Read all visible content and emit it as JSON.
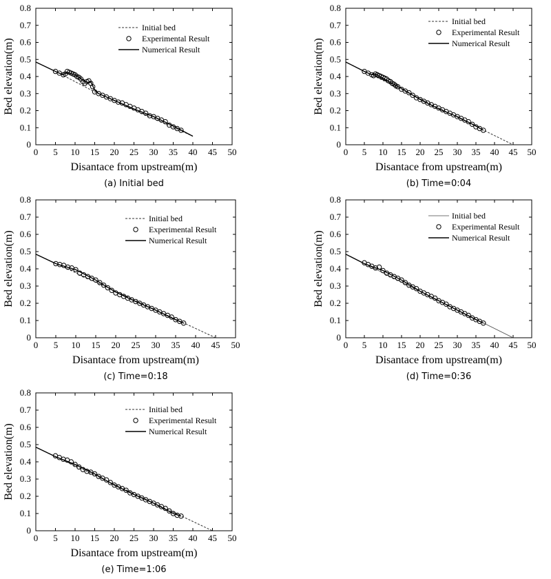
{
  "figure": {
    "panels": [
      {
        "caption": "(a) Initial bed"
      },
      {
        "caption": "(b) Time=0:04"
      },
      {
        "caption": "(c) Time=0:18"
      },
      {
        "caption": "(d) Time=0:36"
      },
      {
        "caption": "(e) Time=1:06"
      }
    ]
  },
  "chart_data": [
    {
      "type": "line",
      "caption": "(a) Initial bed",
      "xlabel": "Disantace from upstream(m)",
      "ylabel": "Bed elevation(m)",
      "xlim": [
        0,
        50
      ],
      "ylim": [
        0,
        0.8
      ],
      "xticks": [
        "0",
        "5",
        "10",
        "15",
        "20",
        "25",
        "30",
        "35",
        "40",
        "45",
        "50"
      ],
      "yticks": [
        "0",
        "0.1",
        "0.2",
        "0.3",
        "0.4",
        "0.5",
        "0.6",
        "0.7",
        "0.8"
      ],
      "legend": [
        "Initial bed",
        "Experimental Result",
        "Numerical Result"
      ],
      "series": [
        {
          "name": "Initial bed",
          "style": "dashed",
          "x": [
            0,
            5,
            15,
            40
          ],
          "y": [
            0.485,
            0.43,
            0.31,
            0.05
          ]
        },
        {
          "name": "Experimental Result",
          "style": "markers",
          "x": [
            5,
            6,
            7,
            7.5,
            8,
            8.5,
            9,
            9.5,
            10,
            10.5,
            11,
            11.5,
            12,
            12.5,
            13,
            13.5,
            14,
            14.5,
            15,
            16,
            17,
            18,
            19,
            20,
            21,
            22,
            23,
            24,
            25,
            26,
            27,
            28,
            29,
            30,
            31,
            32,
            33,
            34,
            35,
            36,
            37
          ],
          "y": [
            0.43,
            0.42,
            0.41,
            0.415,
            0.43,
            0.425,
            0.42,
            0.415,
            0.41,
            0.4,
            0.395,
            0.385,
            0.37,
            0.36,
            0.37,
            0.375,
            0.36,
            0.34,
            0.31,
            0.3,
            0.29,
            0.28,
            0.27,
            0.26,
            0.25,
            0.245,
            0.235,
            0.225,
            0.215,
            0.205,
            0.195,
            0.185,
            0.17,
            0.165,
            0.155,
            0.145,
            0.135,
            0.115,
            0.105,
            0.095,
            0.085
          ]
        },
        {
          "name": "Numerical Result",
          "style": "solid",
          "x": [
            0,
            5,
            7,
            8,
            10,
            12,
            13,
            14,
            15,
            16,
            20,
            25,
            30,
            35,
            40
          ],
          "y": [
            0.485,
            0.43,
            0.41,
            0.425,
            0.41,
            0.38,
            0.365,
            0.37,
            0.32,
            0.3,
            0.26,
            0.21,
            0.165,
            0.11,
            0.05
          ]
        }
      ]
    },
    {
      "type": "line",
      "caption": "(b) Time=0:04",
      "xlabel": "Disantace from upstream(m)",
      "ylabel": "Bed elevation(m)",
      "xlim": [
        0,
        50
      ],
      "ylim": [
        0,
        0.8
      ],
      "xticks": [
        "0",
        "5",
        "10",
        "15",
        "20",
        "25",
        "30",
        "35",
        "40",
        "45",
        "50"
      ],
      "yticks": [
        "0",
        "0.1",
        "0.2",
        "0.3",
        "0.4",
        "0.5",
        "0.6",
        "0.7",
        "0.8"
      ],
      "legend": [
        "Initial bed",
        "Experimental Result",
        "Numerical Result"
      ],
      "series": [
        {
          "name": "Initial bed",
          "style": "dashed",
          "x": [
            0,
            45
          ],
          "y": [
            0.485,
            0.0
          ]
        },
        {
          "name": "Experimental Result",
          "style": "markers",
          "x": [
            5,
            6,
            7,
            7.5,
            8,
            8.5,
            9,
            9.5,
            10,
            10.5,
            11,
            11.5,
            12,
            12.5,
            13,
            13.5,
            14,
            15,
            16,
            17,
            18,
            19,
            20,
            21,
            22,
            23,
            24,
            25,
            26,
            27,
            28,
            29,
            30,
            31,
            32,
            33,
            34,
            35,
            36,
            37
          ],
          "y": [
            0.43,
            0.42,
            0.41,
            0.405,
            0.415,
            0.41,
            0.405,
            0.4,
            0.395,
            0.39,
            0.385,
            0.375,
            0.37,
            0.36,
            0.355,
            0.345,
            0.34,
            0.325,
            0.315,
            0.305,
            0.29,
            0.275,
            0.265,
            0.255,
            0.245,
            0.235,
            0.225,
            0.215,
            0.205,
            0.195,
            0.185,
            0.175,
            0.165,
            0.155,
            0.145,
            0.135,
            0.12,
            0.105,
            0.095,
            0.085
          ]
        },
        {
          "name": "Numerical Result",
          "style": "solid",
          "x": [
            0,
            5,
            7,
            8,
            10,
            15,
            20,
            25,
            30,
            35,
            37
          ],
          "y": [
            0.485,
            0.43,
            0.41,
            0.415,
            0.39,
            0.33,
            0.265,
            0.21,
            0.165,
            0.11,
            0.085
          ]
        }
      ]
    },
    {
      "type": "line",
      "caption": "(c) Time=0:18",
      "xlabel": "Disantace from upstream(m)",
      "ylabel": "Bed elevation(m)",
      "xlim": [
        0,
        50
      ],
      "ylim": [
        0,
        0.8
      ],
      "xticks": [
        "0",
        "5",
        "10",
        "15",
        "20",
        "25",
        "30",
        "35",
        "40",
        "45",
        "50"
      ],
      "yticks": [
        "0",
        "0.1",
        "0.2",
        "0.3",
        "0.4",
        "0.5",
        "0.6",
        "0.7",
        "0.8"
      ],
      "legend": [
        "Initial bed",
        "Experimental Result",
        "Numerical Result"
      ],
      "series": [
        {
          "name": "Initial bed",
          "style": "dashed",
          "x": [
            0,
            45
          ],
          "y": [
            0.485,
            0.0
          ]
        },
        {
          "name": "Experimental Result",
          "style": "markers",
          "x": [
            5,
            6,
            7,
            8,
            9,
            10,
            11,
            12,
            13,
            14,
            15,
            16,
            17,
            18,
            19,
            20,
            21,
            22,
            23,
            24,
            25,
            26,
            27,
            28,
            29,
            30,
            31,
            32,
            33,
            34,
            35,
            36,
            37
          ],
          "y": [
            0.43,
            0.425,
            0.42,
            0.41,
            0.405,
            0.395,
            0.375,
            0.365,
            0.355,
            0.345,
            0.335,
            0.32,
            0.305,
            0.29,
            0.275,
            0.26,
            0.25,
            0.24,
            0.23,
            0.22,
            0.21,
            0.2,
            0.19,
            0.18,
            0.17,
            0.16,
            0.15,
            0.14,
            0.13,
            0.12,
            0.105,
            0.095,
            0.085
          ]
        },
        {
          "name": "Numerical Result",
          "style": "solid",
          "x": [
            0,
            5,
            10,
            15,
            20,
            25,
            30,
            35,
            37
          ],
          "y": [
            0.485,
            0.43,
            0.395,
            0.335,
            0.265,
            0.21,
            0.16,
            0.105,
            0.085
          ]
        }
      ]
    },
    {
      "type": "line",
      "caption": "(d) Time=0:36",
      "xlabel": "Disantace from upstream(m)",
      "ylabel": "Bed elevation(m)",
      "xlim": [
        0,
        50
      ],
      "ylim": [
        0,
        0.8
      ],
      "xticks": [
        "0",
        "5",
        "10",
        "15",
        "20",
        "25",
        "30",
        "35",
        "40",
        "45",
        "50"
      ],
      "yticks": [
        "0",
        "0.1",
        "0.2",
        "0.3",
        "0.4",
        "0.5",
        "0.6",
        "0.7",
        "0.8"
      ],
      "legend": [
        "Initial bed",
        "Experimental Result",
        "Numerical Result"
      ],
      "series": [
        {
          "name": "Initial bed",
          "style": "thin-solid",
          "x": [
            0,
            45
          ],
          "y": [
            0.485,
            0.0
          ]
        },
        {
          "name": "Experimental Result",
          "style": "markers",
          "x": [
            5,
            6,
            7,
            8,
            9,
            10,
            11,
            12,
            13,
            14,
            15,
            16,
            17,
            18,
            19,
            20,
            21,
            22,
            23,
            24,
            25,
            26,
            27,
            28,
            29,
            30,
            31,
            32,
            33,
            34,
            35,
            36,
            37
          ],
          "y": [
            0.435,
            0.425,
            0.415,
            0.405,
            0.41,
            0.39,
            0.375,
            0.365,
            0.355,
            0.345,
            0.335,
            0.32,
            0.305,
            0.295,
            0.285,
            0.27,
            0.26,
            0.25,
            0.24,
            0.23,
            0.215,
            0.205,
            0.195,
            0.18,
            0.17,
            0.16,
            0.15,
            0.14,
            0.13,
            0.115,
            0.105,
            0.095,
            0.085
          ]
        },
        {
          "name": "Numerical Result",
          "style": "solid",
          "x": [
            0,
            5,
            10,
            15,
            20,
            25,
            30,
            35,
            37
          ],
          "y": [
            0.485,
            0.43,
            0.39,
            0.335,
            0.27,
            0.215,
            0.16,
            0.105,
            0.085
          ]
        }
      ]
    },
    {
      "type": "line",
      "caption": "(e) Time=1:06",
      "xlabel": "Disantace from upstream(m)",
      "ylabel": "Bed elevation(m)",
      "xlim": [
        0,
        50
      ],
      "ylim": [
        0,
        0.8
      ],
      "xticks": [
        "0",
        "5",
        "10",
        "15",
        "20",
        "25",
        "30",
        "35",
        "40",
        "45",
        "50"
      ],
      "yticks": [
        "0",
        "0.1",
        "0.2",
        "0.3",
        "0.4",
        "0.5",
        "0.6",
        "0.7",
        "0.8"
      ],
      "legend": [
        "Initial bed",
        "Experimental Result",
        "Numerical Result"
      ],
      "series": [
        {
          "name": "Initial bed",
          "style": "dashed",
          "x": [
            0,
            45
          ],
          "y": [
            0.485,
            0.0
          ]
        },
        {
          "name": "Experimental Result",
          "style": "markers",
          "x": [
            5,
            6,
            7,
            8,
            9,
            10,
            11,
            12,
            13,
            14,
            15,
            16,
            17,
            18,
            19,
            20,
            21,
            22,
            23,
            24,
            25,
            26,
            27,
            28,
            29,
            30,
            31,
            32,
            33,
            34,
            35,
            36,
            37
          ],
          "y": [
            0.435,
            0.425,
            0.415,
            0.41,
            0.4,
            0.385,
            0.37,
            0.355,
            0.345,
            0.34,
            0.33,
            0.315,
            0.305,
            0.295,
            0.28,
            0.265,
            0.255,
            0.245,
            0.235,
            0.22,
            0.21,
            0.2,
            0.19,
            0.18,
            0.17,
            0.16,
            0.15,
            0.14,
            0.13,
            0.115,
            0.1,
            0.09,
            0.085
          ]
        },
        {
          "name": "Numerical Result",
          "style": "solid",
          "x": [
            0,
            5,
            10,
            15,
            20,
            25,
            30,
            35,
            37
          ],
          "y": [
            0.485,
            0.43,
            0.385,
            0.33,
            0.265,
            0.21,
            0.16,
            0.1,
            0.085
          ]
        }
      ]
    }
  ]
}
